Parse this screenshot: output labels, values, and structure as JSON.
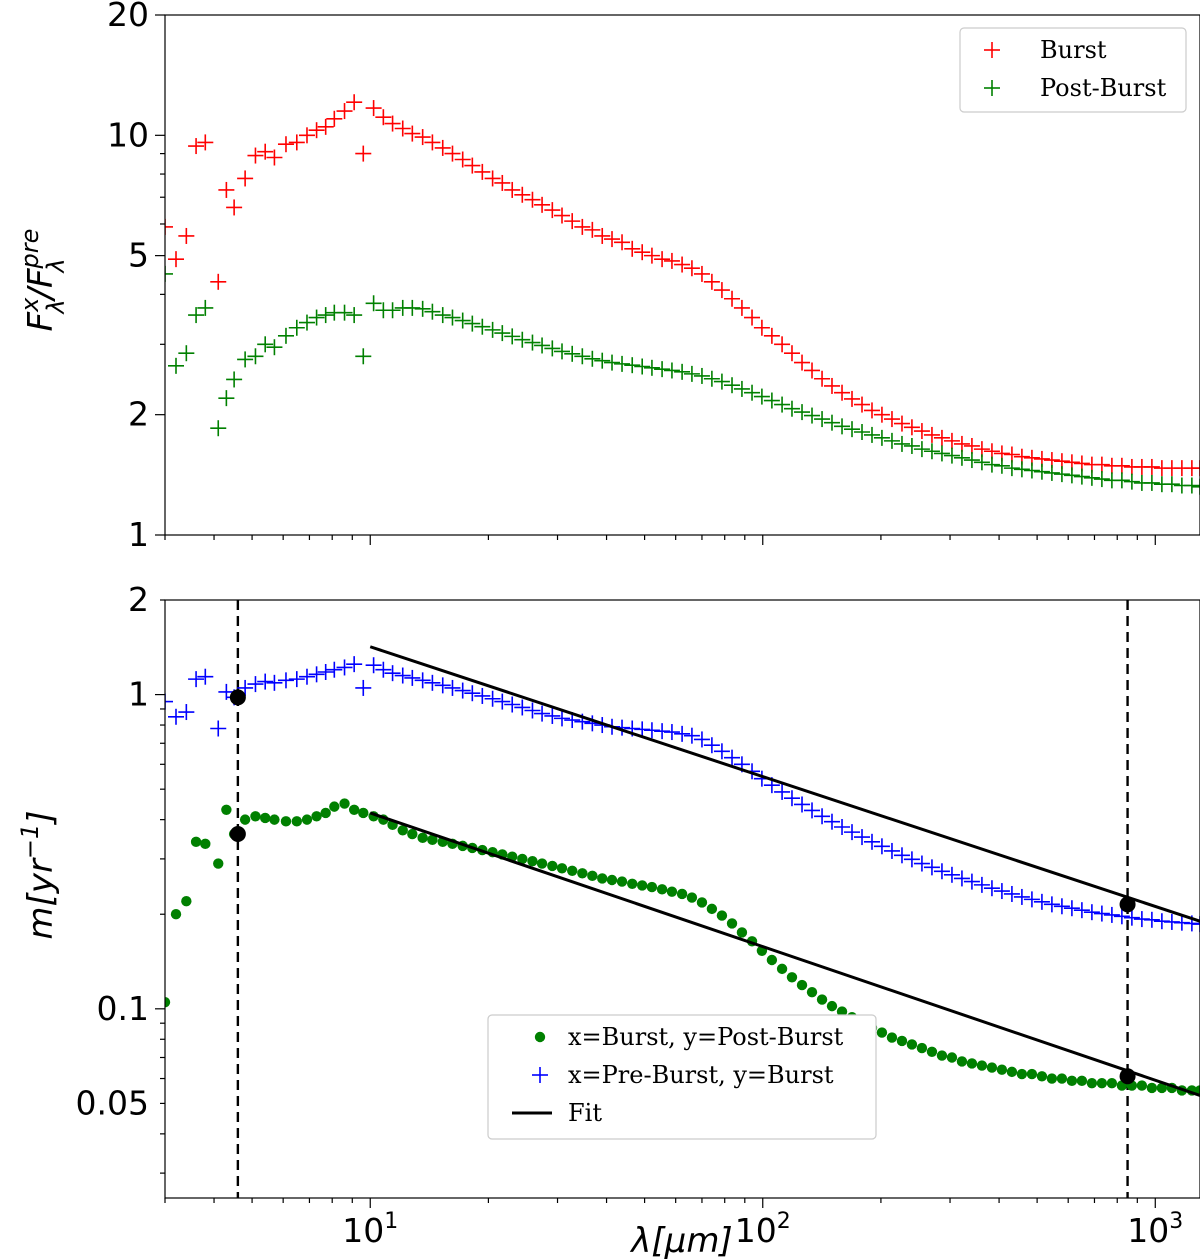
{
  "chart_data": [
    {
      "type": "scatter",
      "panel": "top",
      "yscale": "log",
      "xscale": "log",
      "ylabel": "F_λ^x / F_λ^pre",
      "ylabel_parts": {
        "base": "F",
        "sub": "λ",
        "sup": "x",
        "sep": "/",
        "base2": "F",
        "sub2": "λ",
        "sup2": "pre"
      },
      "xlim": [
        3,
        1300
      ],
      "ylim": [
        1,
        20
      ],
      "yticks": [
        {
          "v": 1,
          "label": "1"
        },
        {
          "v": 2,
          "label": "2"
        },
        {
          "v": 5,
          "label": "5"
        },
        {
          "v": 10,
          "label": "10"
        },
        {
          "v": 20,
          "label": "20"
        }
      ],
      "legend": {
        "placement": "top-right",
        "entries": [
          "Burst",
          "Post-Burst"
        ]
      },
      "series": [
        {
          "name": "Burst",
          "marker": "plus",
          "color": "#ff0000",
          "x": [
            3.0,
            3.2,
            3.4,
            3.6,
            3.8,
            4.1,
            4.3,
            4.5,
            4.8,
            5.1,
            5.4,
            5.7,
            6.1,
            6.5,
            6.9,
            7.3,
            7.7,
            8.1,
            8.6,
            9.1,
            9.6,
            10.2,
            10.8,
            11.4,
            12.1,
            12.8,
            13.6,
            14.4,
            15.3,
            16.2,
            17.2,
            18.2,
            19.3,
            20.5,
            21.7,
            23.0,
            24.4,
            25.9,
            27.4,
            29.1,
            30.8,
            32.7,
            34.7,
            36.8,
            39.0,
            41.3,
            43.8,
            46.5,
            49.3,
            52.2,
            55.4,
            58.7,
            62.3,
            66.0,
            70.0,
            74.2,
            78.7,
            83.5,
            88.5,
            93.9,
            99.5,
            105.5,
            112.0,
            118.7,
            125.9,
            133.5,
            141.6,
            150.1,
            159.2,
            168.8,
            179.0,
            189.8,
            201.2,
            213.4,
            226.3,
            239.9,
            254.4,
            269.8,
            286.1,
            303.4,
            321.7,
            341.1,
            361.7,
            383.6,
            406.7,
            431.3,
            457.3,
            485.0,
            514.3,
            545.3,
            578.3,
            613.2,
            650.2,
            689.5,
            731.1,
            775.3,
            822.1,
            871.8,
            924.4,
            980.3,
            1039.5,
            1102.3,
            1168.9,
            1239.5,
            1300.0
          ],
          "y": [
            5.9,
            4.9,
            5.6,
            9.4,
            9.6,
            4.3,
            7.3,
            6.6,
            7.8,
            8.9,
            9.1,
            8.8,
            9.5,
            9.6,
            10.0,
            10.3,
            10.5,
            11.0,
            11.5,
            12.1,
            9.0,
            11.7,
            11.1,
            10.7,
            10.4,
            10.1,
            9.9,
            9.6,
            9.3,
            9.0,
            8.7,
            8.4,
            8.1,
            7.8,
            7.6,
            7.3,
            7.1,
            6.9,
            6.7,
            6.5,
            6.3,
            6.1,
            5.9,
            5.8,
            5.6,
            5.5,
            5.4,
            5.2,
            5.1,
            5.0,
            4.9,
            4.85,
            4.75,
            4.65,
            4.5,
            4.3,
            4.1,
            3.9,
            3.7,
            3.5,
            3.3,
            3.15,
            3.0,
            2.85,
            2.7,
            2.58,
            2.46,
            2.36,
            2.27,
            2.19,
            2.12,
            2.05,
            2.0,
            1.95,
            1.9,
            1.86,
            1.82,
            1.78,
            1.75,
            1.72,
            1.69,
            1.67,
            1.64,
            1.62,
            1.6,
            1.59,
            1.57,
            1.56,
            1.55,
            1.54,
            1.53,
            1.52,
            1.51,
            1.5,
            1.5,
            1.49,
            1.49,
            1.48,
            1.48,
            1.48,
            1.47,
            1.47,
            1.47,
            1.47,
            1.47
          ]
        },
        {
          "name": "Post-Burst",
          "marker": "plus",
          "color": "#008000",
          "x": [
            3.0,
            3.2,
            3.4,
            3.6,
            3.8,
            4.1,
            4.3,
            4.5,
            4.8,
            5.1,
            5.4,
            5.7,
            6.1,
            6.5,
            6.9,
            7.3,
            7.7,
            8.1,
            8.6,
            9.1,
            9.6,
            10.2,
            10.8,
            11.4,
            12.1,
            12.8,
            13.6,
            14.4,
            15.3,
            16.2,
            17.2,
            18.2,
            19.3,
            20.5,
            21.7,
            23.0,
            24.4,
            25.9,
            27.4,
            29.1,
            30.8,
            32.7,
            34.7,
            36.8,
            39.0,
            41.3,
            43.8,
            46.5,
            49.3,
            52.2,
            55.4,
            58.7,
            62.3,
            66.0,
            70.0,
            74.2,
            78.7,
            83.5,
            88.5,
            93.9,
            99.5,
            105.5,
            112.0,
            118.7,
            125.9,
            133.5,
            141.6,
            150.1,
            159.2,
            168.8,
            179.0,
            189.8,
            201.2,
            213.4,
            226.3,
            239.9,
            254.4,
            269.8,
            286.1,
            303.4,
            321.7,
            341.1,
            361.7,
            383.6,
            406.7,
            431.3,
            457.3,
            485.0,
            514.3,
            545.3,
            578.3,
            613.2,
            650.2,
            689.5,
            731.1,
            775.3,
            822.1,
            871.8,
            924.4,
            980.3,
            1039.5,
            1102.3,
            1168.9,
            1239.5,
            1300.0
          ],
          "y": [
            4.5,
            2.65,
            2.85,
            3.55,
            3.7,
            1.85,
            2.2,
            2.45,
            2.75,
            2.8,
            3.0,
            2.95,
            3.15,
            3.3,
            3.4,
            3.5,
            3.55,
            3.6,
            3.6,
            3.55,
            2.8,
            3.8,
            3.65,
            3.65,
            3.7,
            3.7,
            3.68,
            3.62,
            3.55,
            3.5,
            3.44,
            3.38,
            3.32,
            3.26,
            3.2,
            3.14,
            3.08,
            3.03,
            2.98,
            2.93,
            2.88,
            2.84,
            2.8,
            2.76,
            2.73,
            2.7,
            2.68,
            2.66,
            2.64,
            2.62,
            2.6,
            2.58,
            2.56,
            2.53,
            2.5,
            2.46,
            2.42,
            2.37,
            2.32,
            2.27,
            2.22,
            2.17,
            2.12,
            2.07,
            2.03,
            1.99,
            1.95,
            1.91,
            1.87,
            1.84,
            1.81,
            1.78,
            1.75,
            1.72,
            1.69,
            1.67,
            1.64,
            1.62,
            1.6,
            1.58,
            1.56,
            1.54,
            1.52,
            1.5,
            1.49,
            1.47,
            1.46,
            1.45,
            1.44,
            1.43,
            1.42,
            1.41,
            1.4,
            1.39,
            1.38,
            1.37,
            1.37,
            1.36,
            1.35,
            1.35,
            1.34,
            1.34,
            1.33,
            1.33,
            1.32
          ]
        }
      ]
    },
    {
      "type": "scatter",
      "panel": "bottom",
      "yscale": "log",
      "xscale": "log",
      "xlabel": "λ[μm]",
      "ylabel": "m[yr^-1]",
      "ylabel_parts": {
        "base": "m[yr",
        "sup": "−1",
        "end": "]"
      },
      "xlim": [
        3,
        1300
      ],
      "ylim": [
        0.025,
        2
      ],
      "xticks": [
        {
          "v": 10,
          "base": "10",
          "exp": "1"
        },
        {
          "v": 100,
          "base": "10",
          "exp": "2"
        },
        {
          "v": 1000,
          "base": "10",
          "exp": "3"
        }
      ],
      "yticks": [
        {
          "v": 0.05,
          "label": "0.05"
        },
        {
          "v": 0.1,
          "label": "0.1"
        },
        {
          "v": 1,
          "label": "1"
        },
        {
          "v": 2,
          "label": "2"
        }
      ],
      "vlines_x": [
        4.6,
        850
      ],
      "key_points": [
        {
          "x": 4.6,
          "y": 0.98
        },
        {
          "x": 4.6,
          "y": 0.36
        },
        {
          "x": 850,
          "y": 0.215
        },
        {
          "x": 850,
          "y": 0.061
        }
      ],
      "legend": {
        "placement": "lower-center",
        "entries": [
          "x=Burst, y=Post-Burst",
          "x=Pre-Burst, y=Burst",
          "Fit"
        ]
      },
      "series": [
        {
          "name": "x=Burst, y=Post-Burst",
          "marker": "dot",
          "color": "#008000",
          "x": [
            3.0,
            3.2,
            3.4,
            3.6,
            3.8,
            4.1,
            4.3,
            4.5,
            4.8,
            5.1,
            5.4,
            5.7,
            6.1,
            6.5,
            6.9,
            7.3,
            7.7,
            8.1,
            8.6,
            9.1,
            9.6,
            10.2,
            10.8,
            11.4,
            12.1,
            12.8,
            13.6,
            14.4,
            15.3,
            16.2,
            17.2,
            18.2,
            19.3,
            20.5,
            21.7,
            23.0,
            24.4,
            25.9,
            27.4,
            29.1,
            30.8,
            32.7,
            34.7,
            36.8,
            39.0,
            41.3,
            43.8,
            46.5,
            49.3,
            52.2,
            55.4,
            58.7,
            62.3,
            66.0,
            70.0,
            74.2,
            78.7,
            83.5,
            88.5,
            93.9,
            99.5,
            105.5,
            112.0,
            118.7,
            125.9,
            133.5,
            141.6,
            150.1,
            159.2,
            168.8,
            179.0,
            189.8,
            201.2,
            213.4,
            226.3,
            239.9,
            254.4,
            269.8,
            286.1,
            303.4,
            321.7,
            341.1,
            361.7,
            383.6,
            406.7,
            431.3,
            457.3,
            485.0,
            514.3,
            545.3,
            578.3,
            613.2,
            650.2,
            689.5,
            731.1,
            775.3,
            822.1,
            871.8,
            924.4,
            980.3,
            1039.5,
            1102.3,
            1168.9,
            1239.5,
            1300.0
          ],
          "y": [
            0.105,
            0.2,
            0.22,
            0.34,
            0.335,
            0.29,
            0.43,
            0.36,
            0.4,
            0.41,
            0.405,
            0.4,
            0.395,
            0.395,
            0.4,
            0.41,
            0.42,
            0.44,
            0.45,
            0.43,
            0.42,
            0.41,
            0.4,
            0.385,
            0.37,
            0.36,
            0.35,
            0.345,
            0.34,
            0.335,
            0.33,
            0.325,
            0.32,
            0.315,
            0.31,
            0.305,
            0.3,
            0.295,
            0.29,
            0.285,
            0.28,
            0.275,
            0.27,
            0.265,
            0.26,
            0.257,
            0.254,
            0.25,
            0.247,
            0.244,
            0.24,
            0.236,
            0.232,
            0.226,
            0.218,
            0.208,
            0.198,
            0.187,
            0.175,
            0.164,
            0.153,
            0.143,
            0.134,
            0.126,
            0.119,
            0.113,
            0.107,
            0.102,
            0.098,
            0.094,
            0.09,
            0.087,
            0.084,
            0.081,
            0.079,
            0.077,
            0.075,
            0.073,
            0.071,
            0.07,
            0.068,
            0.067,
            0.066,
            0.065,
            0.064,
            0.063,
            0.062,
            0.062,
            0.061,
            0.06,
            0.06,
            0.059,
            0.059,
            0.058,
            0.058,
            0.058,
            0.057,
            0.057,
            0.057,
            0.056,
            0.056,
            0.056,
            0.055,
            0.055,
            0.055
          ]
        },
        {
          "name": "x=Pre-Burst, y=Burst",
          "marker": "plus",
          "color": "#0000ff",
          "x": [
            3.0,
            3.2,
            3.4,
            3.6,
            3.8,
            4.1,
            4.3,
            4.5,
            4.8,
            5.1,
            5.4,
            5.7,
            6.1,
            6.5,
            6.9,
            7.3,
            7.7,
            8.1,
            8.6,
            9.1,
            9.6,
            10.2,
            10.8,
            11.4,
            12.1,
            12.8,
            13.6,
            14.4,
            15.3,
            16.2,
            17.2,
            18.2,
            19.3,
            20.5,
            21.7,
            23.0,
            24.4,
            25.9,
            27.4,
            29.1,
            30.8,
            32.7,
            34.7,
            36.8,
            39.0,
            41.3,
            43.8,
            46.5,
            49.3,
            52.2,
            55.4,
            58.7,
            62.3,
            66.0,
            70.0,
            74.2,
            78.7,
            83.5,
            88.5,
            93.9,
            99.5,
            105.5,
            112.0,
            118.7,
            125.9,
            133.5,
            141.6,
            150.1,
            159.2,
            168.8,
            179.0,
            189.8,
            201.2,
            213.4,
            226.3,
            239.9,
            254.4,
            269.8,
            286.1,
            303.4,
            321.7,
            341.1,
            361.7,
            383.6,
            406.7,
            431.3,
            457.3,
            485.0,
            514.3,
            545.3,
            578.3,
            613.2,
            650.2,
            689.5,
            731.1,
            775.3,
            822.1,
            871.8,
            924.4,
            980.3,
            1039.5,
            1102.3,
            1168.9,
            1239.5,
            1300.0
          ],
          "y": [
            0.95,
            0.85,
            0.88,
            1.12,
            1.14,
            0.78,
            1.02,
            0.98,
            1.05,
            1.08,
            1.1,
            1.09,
            1.11,
            1.12,
            1.14,
            1.16,
            1.18,
            1.2,
            1.22,
            1.25,
            1.05,
            1.24,
            1.2,
            1.17,
            1.15,
            1.13,
            1.11,
            1.09,
            1.07,
            1.05,
            1.03,
            1.01,
            0.99,
            0.97,
            0.95,
            0.93,
            0.91,
            0.89,
            0.87,
            0.855,
            0.84,
            0.83,
            0.82,
            0.81,
            0.8,
            0.79,
            0.785,
            0.78,
            0.775,
            0.77,
            0.765,
            0.76,
            0.75,
            0.74,
            0.72,
            0.69,
            0.66,
            0.63,
            0.6,
            0.57,
            0.54,
            0.515,
            0.49,
            0.468,
            0.447,
            0.428,
            0.41,
            0.394,
            0.379,
            0.365,
            0.352,
            0.34,
            0.329,
            0.318,
            0.308,
            0.299,
            0.29,
            0.282,
            0.274,
            0.267,
            0.26,
            0.254,
            0.248,
            0.242,
            0.237,
            0.232,
            0.227,
            0.223,
            0.219,
            0.215,
            0.212,
            0.209,
            0.206,
            0.203,
            0.201,
            0.199,
            0.197,
            0.195,
            0.193,
            0.192,
            0.19,
            0.189,
            0.188,
            0.187,
            0.186
          ]
        },
        {
          "name": "Fit",
          "marker": "line",
          "color": "#000000",
          "segments": [
            {
              "x": [
                10,
                1300
              ],
              "y": [
                1.42,
                0.19
              ]
            },
            {
              "x": [
                10,
                1300
              ],
              "y": [
                0.42,
                0.053
              ]
            }
          ]
        }
      ]
    }
  ]
}
